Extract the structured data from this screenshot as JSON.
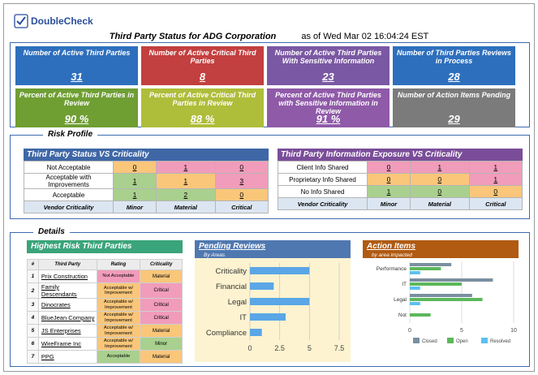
{
  "brand": {
    "name_part1": "Double",
    "name_part2": "Check"
  },
  "header": {
    "title": "Third Party Status for ADG Corporation",
    "as_of": "as of Wed Mar 02 16:04:24 EST"
  },
  "tiles": [
    {
      "label": "Number of Active Third Parties",
      "value": "31",
      "color": "#2e6fbd"
    },
    {
      "label": "Number of Active Critical Third Parties",
      "value": "8",
      "color": "#c2403f"
    },
    {
      "label": "Number of Active Third Parties With Sensitive Information",
      "value": "23",
      "color": "#7b58a3"
    },
    {
      "label": "Number  of Third Parties Reviews in Process",
      "value": "28",
      "color": "#2e6fbd"
    },
    {
      "label": "Percent of Active Third Parties in Review",
      "value": "90 %",
      "color": "#6f9e33"
    },
    {
      "label": "Percent of Active Critical Third Parties in Review",
      "value": "88 %",
      "color": "#aebd3a"
    },
    {
      "label": "Percent of Active Third Parties with Sensitive Information in Review",
      "value": "91 %",
      "color": "#8f5aa8"
    },
    {
      "label": "Number of Action Items Pending",
      "value": "29",
      "color": "#7b7b7b"
    }
  ],
  "risk_profile": {
    "title": "Risk Profile",
    "status_table": {
      "title": "Third Party Status VS Criticality",
      "head_color": "#3f67a6",
      "rows": [
        {
          "label": "Not Acceptable",
          "cells": [
            "0",
            "1",
            "0"
          ]
        },
        {
          "label": "Acceptable with Improvements",
          "cells": [
            "1",
            "1",
            "3"
          ]
        },
        {
          "label": "Acceptable",
          "cells": [
            "1",
            "2",
            "0"
          ]
        }
      ],
      "cell_colors": [
        [
          "#f9c67a",
          "#f19cba",
          "#f19cba"
        ],
        [
          "#a9d08e",
          "#f9c67a",
          "#f19cba"
        ],
        [
          "#a9d08e",
          "#a9d08e",
          "#f9c67a"
        ]
      ],
      "footer": [
        "Vendor Criticality",
        "Minor",
        "Material",
        "Critical"
      ]
    },
    "exposure_table": {
      "title": "Third Party Information Exposure VS Criticality",
      "head_color": "#7a4d99",
      "rows": [
        {
          "label": "Client Info Shared",
          "cells": [
            "0",
            "1",
            "1"
          ]
        },
        {
          "label": "Proprietary Info Shared",
          "cells": [
            "0",
            "0",
            "1"
          ]
        },
        {
          "label": "No Info Shared",
          "cells": [
            "1",
            "0",
            "0"
          ]
        }
      ],
      "cell_colors": [
        [
          "#f19cba",
          "#f19cba",
          "#f19cba"
        ],
        [
          "#f9c67a",
          "#f9c67a",
          "#f19cba"
        ],
        [
          "#a9d08e",
          "#a9d08e",
          "#f9c67a"
        ]
      ],
      "footer": [
        "Vendor Criticality",
        "Minor",
        "Material",
        "Critical"
      ]
    }
  },
  "details": {
    "title": "Details",
    "highest_risk": {
      "title": "Highest Risk Third Parties",
      "head_color": "#3aa47a",
      "columns": [
        "#",
        "Third Party",
        "Rating",
        "Criticality"
      ],
      "rows": [
        {
          "idx": "1",
          "name": "Prix Construction",
          "rating": "Not Acceptable",
          "criticality": "Material",
          "rating_color": "#f19cba",
          "crit_color": "#f9c67a"
        },
        {
          "idx": "2",
          "name": "Family Descendants",
          "rating": "Acceptable w/ Improvement",
          "criticality": "Critical",
          "rating_color": "#f9c67a",
          "crit_color": "#f19cba"
        },
        {
          "idx": "3",
          "name": "Dinocrates",
          "rating": "Acceptable w/ Improvement",
          "criticality": "Critical",
          "rating_color": "#f9c67a",
          "crit_color": "#f19cba"
        },
        {
          "idx": "4",
          "name": "BlueJean Company",
          "rating": "Acceptable w/ Improvement",
          "criticality": "Critical",
          "rating_color": "#f9c67a",
          "crit_color": "#f19cba"
        },
        {
          "idx": "5",
          "name": "JS Enterprises",
          "rating": "Acceptable w/ Improvement",
          "criticality": "Material",
          "rating_color": "#f9c67a",
          "crit_color": "#f9c67a"
        },
        {
          "idx": "6",
          "name": "WireFrame Inc",
          "rating": "Acceptable w/ Improvement",
          "criticality": "Minor",
          "rating_color": "#f9c67a",
          "crit_color": "#a9d08e"
        },
        {
          "idx": "7",
          "name": "PPG",
          "rating": "Acceptable",
          "criticality": "Material",
          "rating_color": "#a9d08e",
          "crit_color": "#f9c67a"
        }
      ]
    },
    "pending_reviews": {
      "title": "Pending Reviews",
      "subtitle": "By Areas",
      "head_color": "#4f78b0",
      "bg_color": "#fdf3d0",
      "bar_color": "#5aa6e6"
    },
    "action_items": {
      "title": "Action Items",
      "subtitle": "by area impacted",
      "head_color": "#b05a12"
    }
  },
  "chart_data": [
    {
      "type": "bar",
      "orientation": "horizontal",
      "title": "Pending Reviews",
      "categories": [
        "Critical ity",
        "Financial",
        "Legal",
        "IT",
        "Compliance"
      ],
      "category_labels": [
        "Criticality",
        "Financial",
        "Legal",
        "IT",
        "Compliance"
      ],
      "values": [
        5,
        2,
        5,
        3,
        1
      ],
      "xlim": [
        0,
        7.5
      ],
      "x_ticks": [
        "0",
        "2.5",
        "5",
        "7.5"
      ],
      "grid": true
    },
    {
      "type": "bar",
      "orientation": "horizontal",
      "stacked": false,
      "title": "Action Items",
      "categories": [
        "Performance",
        "IT",
        "Legal",
        "Not"
      ],
      "xlim": [
        0,
        10
      ],
      "x_ticks": [
        "0",
        "5",
        "10"
      ],
      "legend_position": "bottom",
      "series": [
        {
          "name": "Closed",
          "color": "#7a8fa0",
          "values": [
            4,
            8,
            6,
            0
          ]
        },
        {
          "name": "Open",
          "color": "#5cb85c",
          "values": [
            3,
            5,
            7,
            2
          ]
        },
        {
          "name": "Resolved",
          "color": "#5bc0f0",
          "values": [
            1,
            1,
            1,
            0
          ]
        }
      ]
    }
  ]
}
